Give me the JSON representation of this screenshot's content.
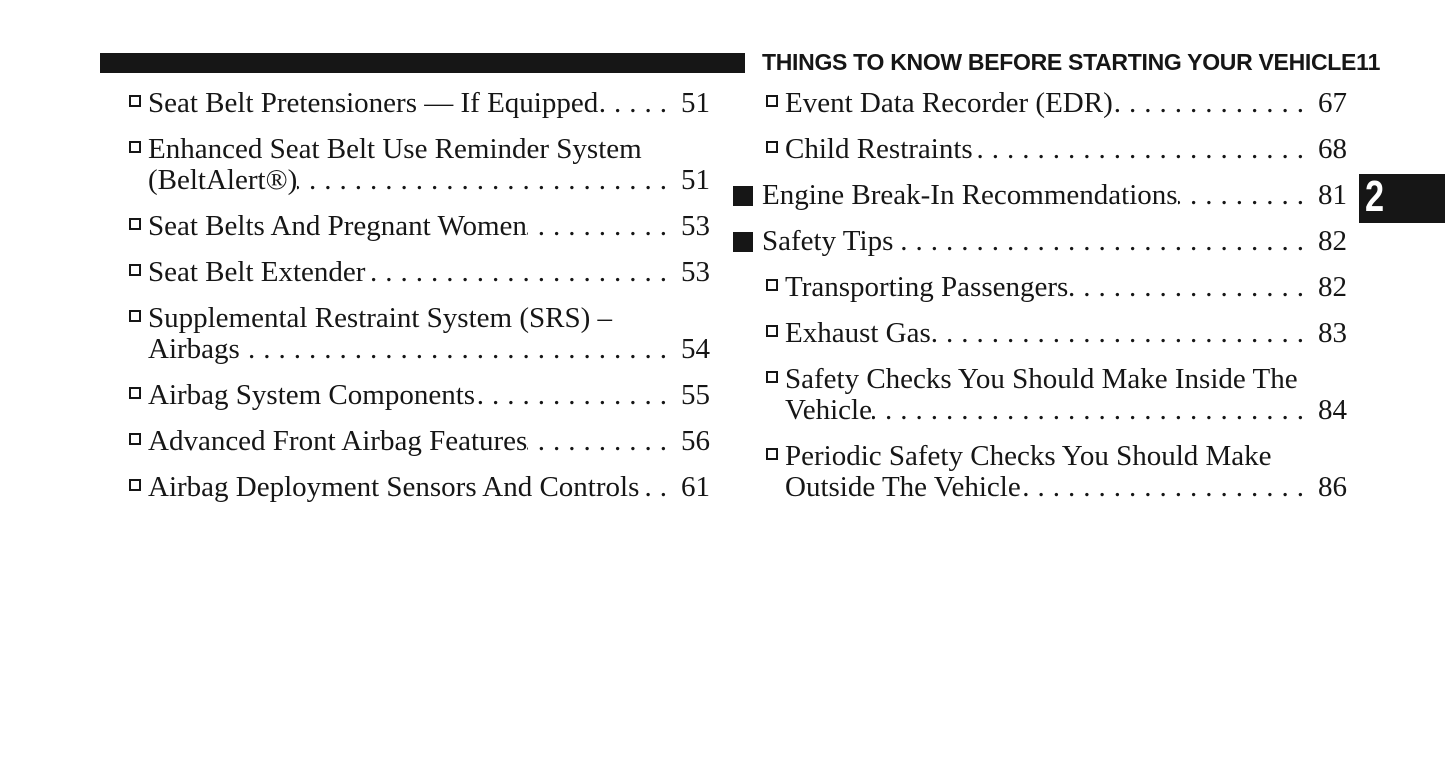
{
  "header": {
    "title": "THINGS TO KNOW BEFORE STARTING YOUR VEHICLE",
    "page_number": "11"
  },
  "side_tab": {
    "label": "2"
  },
  "colors": {
    "ink": "#161616",
    "paper": "#ffffff",
    "tab_text": "#ffffff"
  },
  "toc": {
    "left_column": [
      {
        "level": "sub",
        "lines": [
          "Seat Belt Pretensioners — If Equipped"
        ],
        "page": "51"
      },
      {
        "level": "sub",
        "lines": [
          "Enhanced Seat Belt Use Reminder System",
          "(BeltAlert®)"
        ],
        "page": "51"
      },
      {
        "level": "sub",
        "lines": [
          "Seat Belts And Pregnant Women"
        ],
        "page": "53"
      },
      {
        "level": "sub",
        "lines": [
          "Seat Belt Extender"
        ],
        "page": "53"
      },
      {
        "level": "sub",
        "lines": [
          "Supplemental Restraint System (SRS) –",
          "Airbags"
        ],
        "page": "54"
      },
      {
        "level": "sub",
        "lines": [
          "Airbag System Components"
        ],
        "page": "55"
      },
      {
        "level": "sub",
        "lines": [
          "Advanced Front Airbag Features"
        ],
        "page": "56"
      },
      {
        "level": "sub",
        "lines": [
          "Airbag Deployment Sensors And Controls"
        ],
        "page": "61"
      }
    ],
    "right_column": [
      {
        "level": "sub",
        "lines": [
          "Event Data Recorder (EDR)"
        ],
        "page": "67"
      },
      {
        "level": "sub",
        "lines": [
          "Child Restraints"
        ],
        "page": "68"
      },
      {
        "level": "top",
        "lines": [
          "Engine Break-In Recommendations"
        ],
        "page": "81"
      },
      {
        "level": "top",
        "lines": [
          "Safety Tips"
        ],
        "page": "82"
      },
      {
        "level": "sub",
        "lines": [
          "Transporting Passengers"
        ],
        "page": "82"
      },
      {
        "level": "sub",
        "lines": [
          "Exhaust Gas"
        ],
        "page": "83"
      },
      {
        "level": "sub",
        "lines": [
          "Safety Checks You Should Make Inside The",
          "Vehicle"
        ],
        "page": "84"
      },
      {
        "level": "sub",
        "lines": [
          "Periodic Safety Checks You Should Make",
          "Outside The Vehicle"
        ],
        "page": "86"
      }
    ]
  }
}
